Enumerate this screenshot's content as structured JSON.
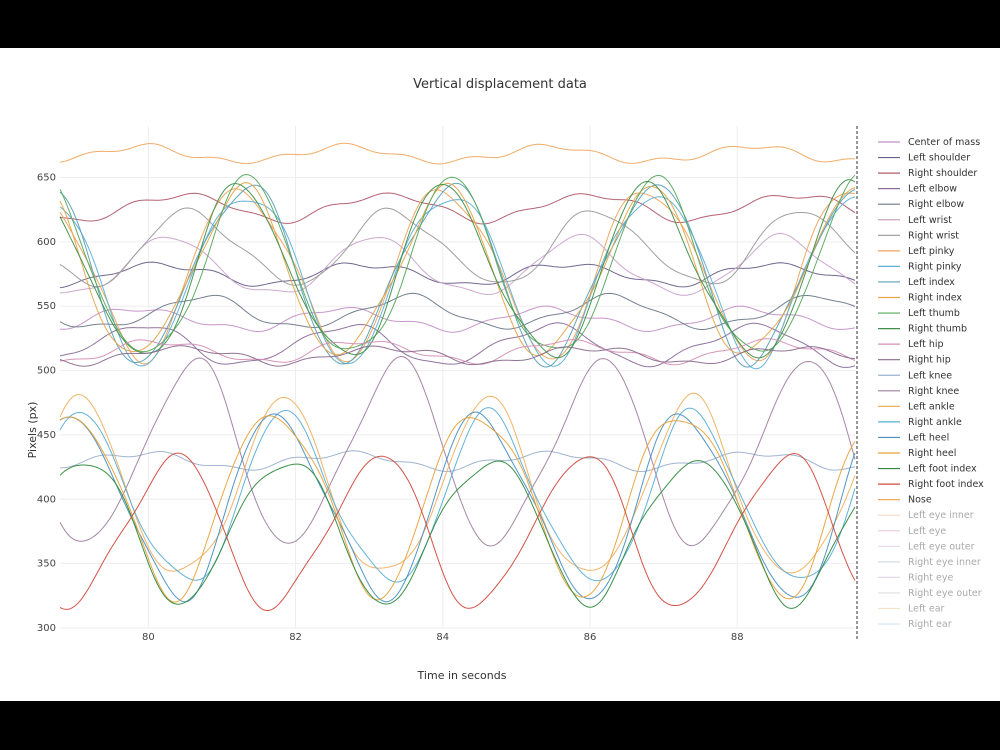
{
  "chart_data": {
    "type": "line",
    "title": "Vertical displacement data",
    "xlabel": "Time in seconds",
    "ylabel": "Pixels (px)",
    "xlim": [
      78.8,
      89.6
    ],
    "ylim": [
      300,
      690
    ],
    "xticks": [
      80,
      82,
      84,
      86,
      88
    ],
    "yticks": [
      300,
      350,
      400,
      450,
      500,
      550,
      600,
      650
    ],
    "legend_position": "right",
    "period_s": 2.77,
    "series": [
      {
        "name": "Center of mass",
        "color": "#c490c8",
        "mean": 540,
        "amp": 8,
        "phase": 0.0,
        "visible": true
      },
      {
        "name": "Left shoulder",
        "color": "#6a5f8a",
        "mean": 575,
        "amp": 8,
        "phase": 0.1,
        "visible": true
      },
      {
        "name": "Right shoulder",
        "color": "#b25a6b",
        "mean": 627,
        "amp": 10,
        "phase": 0.2,
        "visible": true
      },
      {
        "name": "Left elbow",
        "color": "#8a6b9b",
        "mean": 520,
        "amp": 15,
        "phase": 0.0,
        "visible": true
      },
      {
        "name": "Right elbow",
        "color": "#6d7a8c",
        "mean": 545,
        "amp": 12,
        "phase": 0.3,
        "visible": true
      },
      {
        "name": "Left wrist",
        "color": "#c9a4cc",
        "mean": 580,
        "amp": 22,
        "phase": 0.15,
        "visible": true
      },
      {
        "name": "Right wrist",
        "color": "#9a9a9a",
        "mean": 595,
        "amp": 28,
        "phase": 0.25,
        "visible": true
      },
      {
        "name": "Left pinky",
        "color": "#f0a35a",
        "mean": 578,
        "amp": 65,
        "phase": 0.5,
        "visible": true
      },
      {
        "name": "Right pinky",
        "color": "#5fb0d8",
        "mean": 576,
        "amp": 65,
        "phase": 0.52,
        "visible": true
      },
      {
        "name": "Left index",
        "color": "#5aa0b8",
        "mean": 577,
        "amp": 68,
        "phase": 0.51,
        "visible": true
      },
      {
        "name": "Right index",
        "color": "#e4a449",
        "mean": 575,
        "amp": 64,
        "phase": 0.49,
        "visible": true
      },
      {
        "name": "Left thumb",
        "color": "#58a85e",
        "mean": 576,
        "amp": 68,
        "phase": 0.53,
        "visible": true
      },
      {
        "name": "Right thumb",
        "color": "#3f8f4a",
        "mean": 575,
        "amp": 66,
        "phase": 0.5,
        "visible": true
      },
      {
        "name": "Left hip",
        "color": "#d48fb6",
        "mean": 515,
        "amp": 8,
        "phase": 0.1,
        "visible": true
      },
      {
        "name": "Right hip",
        "color": "#8a6a8e",
        "mean": 512,
        "amp": 6,
        "phase": 0.2,
        "visible": true
      },
      {
        "name": "Left knee",
        "color": "#9bb0cf",
        "mean": 430,
        "amp": 6,
        "phase": 0.0,
        "visible": true
      },
      {
        "name": "Right knee",
        "color": "#a07fa0",
        "mean": 435,
        "amp": 70,
        "phase": 0.25,
        "visible": true
      },
      {
        "name": "Left ankle",
        "color": "#f0b060",
        "mean": 405,
        "amp": 68,
        "phase": 0.7,
        "visible": true
      },
      {
        "name": "Right ankle",
        "color": "#5aaed6",
        "mean": 398,
        "amp": 65,
        "phase": 0.72,
        "visible": true
      },
      {
        "name": "Left heel",
        "color": "#4a8fc0",
        "mean": 395,
        "amp": 70,
        "phase": 0.68,
        "visible": true
      },
      {
        "name": "Right heel",
        "color": "#e8a23c",
        "mean": 400,
        "amp": 70,
        "phase": 0.66,
        "visible": true
      },
      {
        "name": "Left foot index",
        "color": "#2f8a3e",
        "mean": 378,
        "amp": 55,
        "phase": 0.71,
        "visible": true
      },
      {
        "name": "Right foot index",
        "color": "#d04a3e",
        "mean": 375,
        "amp": 58,
        "phase": 0.16,
        "visible": true
      },
      {
        "name": "Nose",
        "color": "#f0a860",
        "mean": 668,
        "amp": 6,
        "phase": 0.0,
        "visible": true
      },
      {
        "name": "Left eye inner",
        "color": "#f0b58a",
        "visible": false
      },
      {
        "name": "Left eye",
        "color": "#e0a0c0",
        "visible": false
      },
      {
        "name": "Left eye outer",
        "color": "#d0b0d0",
        "visible": false
      },
      {
        "name": "Right eye inner",
        "color": "#b0b8c8",
        "visible": false
      },
      {
        "name": "Right eye",
        "color": "#c8b0d0",
        "visible": false
      },
      {
        "name": "Right eye outer",
        "color": "#c0c0c0",
        "visible": false
      },
      {
        "name": "Left ear",
        "color": "#f0c890",
        "visible": false
      },
      {
        "name": "Right ear",
        "color": "#a8d0e0",
        "visible": false
      }
    ]
  }
}
